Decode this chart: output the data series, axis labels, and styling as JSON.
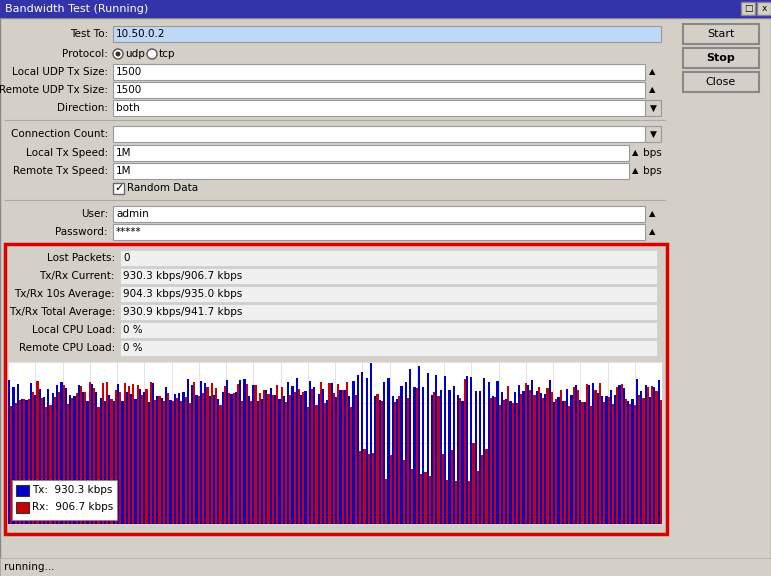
{
  "title": "Bandwidth Test (Running)",
  "bg_color": "#d4d0c8",
  "field_bg": "#ffffff",
  "highlight_bg": "#c0d8f8",
  "test_to": "10.50.0.2",
  "local_udp_tx_size": "1500",
  "remote_udp_tx_size": "1500",
  "direction": "both",
  "local_tx_speed": "1M",
  "remote_tx_speed": "1M",
  "user": "admin",
  "password": "*****",
  "lost_packets": "0",
  "tx_rx_current": "930.3 kbps/906.7 kbps",
  "tx_rx_10s_avg": "904.3 kbps/935.0 kbps",
  "tx_rx_total_avg": "930.9 kbps/941.7 kbps",
  "local_cpu_load": "0 %",
  "remote_cpu_load": "0 %",
  "tx_label": "Tx:  930.3 kbps",
  "rx_label": "Rx:  906.7 kbps",
  "tx_color": "#0000cc",
  "rx_color": "#cc0000",
  "status_bar": "running...",
  "chart_border": "#dd0000",
  "grid_color": "#d8d8d8",
  "titlebar_color": "#4444aa",
  "button_border": "#888888",
  "stats_field_bg": "#f0f0f0",
  "bar_count": 150
}
